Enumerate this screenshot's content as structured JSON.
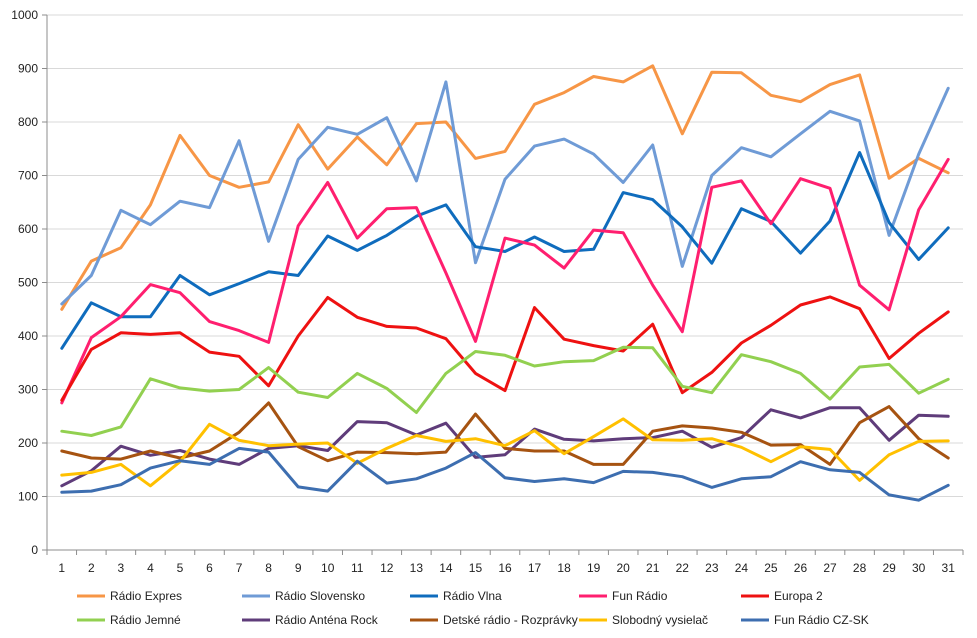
{
  "chart_data": {
    "type": "line",
    "title": "",
    "xlabel": "",
    "ylabel": "",
    "x": [
      1,
      2,
      3,
      4,
      5,
      6,
      7,
      8,
      9,
      10,
      11,
      12,
      13,
      14,
      15,
      16,
      17,
      18,
      19,
      20,
      21,
      22,
      23,
      24,
      25,
      26,
      27,
      28,
      29,
      30,
      31
    ],
    "x_tick_labels": [
      "1",
      "2",
      "3",
      "4",
      "5",
      "6",
      "7",
      "8",
      "9",
      "10",
      "11",
      "12",
      "13",
      "14",
      "15",
      "16",
      "17",
      "18",
      "19",
      "20",
      "21",
      "22",
      "23",
      "24",
      "25",
      "26",
      "27",
      "28",
      "29",
      "30",
      "31"
    ],
    "ylim": [
      0,
      1000
    ],
    "y_ticks": [
      0,
      100,
      200,
      300,
      400,
      500,
      600,
      700,
      800,
      900,
      1000
    ],
    "y_tick_labels": [
      "0",
      "100",
      "200",
      "300",
      "400",
      "500",
      "600",
      "700",
      "800",
      "900",
      "1000"
    ],
    "grid": true,
    "legend_position": "bottom",
    "series": [
      {
        "name": "Rádio Expres",
        "color": "#f79646",
        "values": [
          450,
          540,
          565,
          645,
          775,
          700,
          678,
          688,
          795,
          712,
          772,
          720,
          797,
          800,
          732,
          745,
          833,
          855,
          885,
          875,
          905,
          778,
          893,
          892,
          850,
          838,
          870,
          888,
          695,
          732,
          705
        ]
      },
      {
        "name": "Rádio Slovensko",
        "color": "#6f9bd6",
        "values": [
          460,
          513,
          635,
          608,
          652,
          640,
          765,
          577,
          730,
          790,
          777,
          808,
          690,
          875,
          537,
          693,
          755,
          768,
          740,
          687,
          757,
          530,
          700,
          752,
          735,
          778,
          820,
          802,
          588,
          740,
          863
        ]
      },
      {
        "name": "Rádio Vlna",
        "color": "#0f6cbd",
        "values": [
          377,
          462,
          436,
          436,
          513,
          477,
          498,
          520,
          513,
          587,
          560,
          588,
          624,
          645,
          567,
          558,
          585,
          558,
          562,
          668,
          655,
          604,
          536,
          638,
          614,
          555,
          615,
          743,
          612,
          543,
          602
        ]
      },
      {
        "name": "Fun Rádio",
        "color": "#ff1f6f",
        "values": [
          275,
          397,
          436,
          496,
          481,
          427,
          410,
          388,
          606,
          687,
          583,
          638,
          640,
          518,
          390,
          583,
          570,
          527,
          598,
          593,
          495,
          408,
          678,
          690,
          610,
          694,
          676,
          495,
          449,
          636,
          730
        ]
      },
      {
        "name": "Europa 2",
        "color": "#ee1111",
        "values": [
          280,
          375,
          406,
          403,
          406,
          370,
          362,
          307,
          400,
          472,
          435,
          418,
          415,
          395,
          330,
          298,
          453,
          394,
          382,
          372,
          422,
          294,
          332,
          387,
          420,
          458,
          473,
          451,
          358,
          405,
          445
        ]
      },
      {
        "name": "Rádio Jemné",
        "color": "#92d050",
        "values": [
          222,
          214,
          230,
          320,
          303,
          297,
          300,
          341,
          295,
          285,
          330,
          302,
          257,
          330,
          371,
          364,
          344,
          352,
          354,
          379,
          378,
          306,
          294,
          365,
          352,
          330,
          282,
          342,
          347,
          293,
          319
        ]
      },
      {
        "name": "Rádio Anténa Rock",
        "color": "#5f3c7a",
        "values": [
          120,
          148,
          194,
          177,
          186,
          170,
          160,
          190,
          195,
          186,
          240,
          238,
          215,
          237,
          173,
          178,
          226,
          207,
          204,
          208,
          210,
          222,
          192,
          210,
          262,
          247,
          266,
          266,
          205,
          252,
          250
        ]
      },
      {
        "name": "Detské rádio - Rozprávky",
        "color": "#a65311",
        "values": [
          185,
          172,
          170,
          185,
          172,
          185,
          220,
          275,
          193,
          167,
          183,
          182,
          180,
          183,
          254,
          190,
          185,
          185,
          160,
          160,
          222,
          232,
          228,
          220,
          196,
          197,
          160,
          238,
          268,
          208,
          172
        ]
      },
      {
        "name": "Slobodný vysielač",
        "color": "#ffc000",
        "values": [
          140,
          145,
          160,
          120,
          165,
          235,
          205,
          195,
          198,
          200,
          162,
          190,
          214,
          203,
          208,
          195,
          223,
          180,
          212,
          245,
          206,
          205,
          208,
          192,
          165,
          193,
          188,
          130,
          178,
          203,
          204
        ]
      },
      {
        "name": "Fun Rádio CZ-SK",
        "color": "#3d6eb0",
        "values": [
          108,
          110,
          122,
          153,
          167,
          160,
          190,
          183,
          118,
          110,
          166,
          125,
          133,
          153,
          182,
          135,
          128,
          133,
          126,
          147,
          145,
          137,
          117,
          133,
          137,
          165,
          150,
          145,
          103,
          93,
          121
        ]
      }
    ]
  }
}
